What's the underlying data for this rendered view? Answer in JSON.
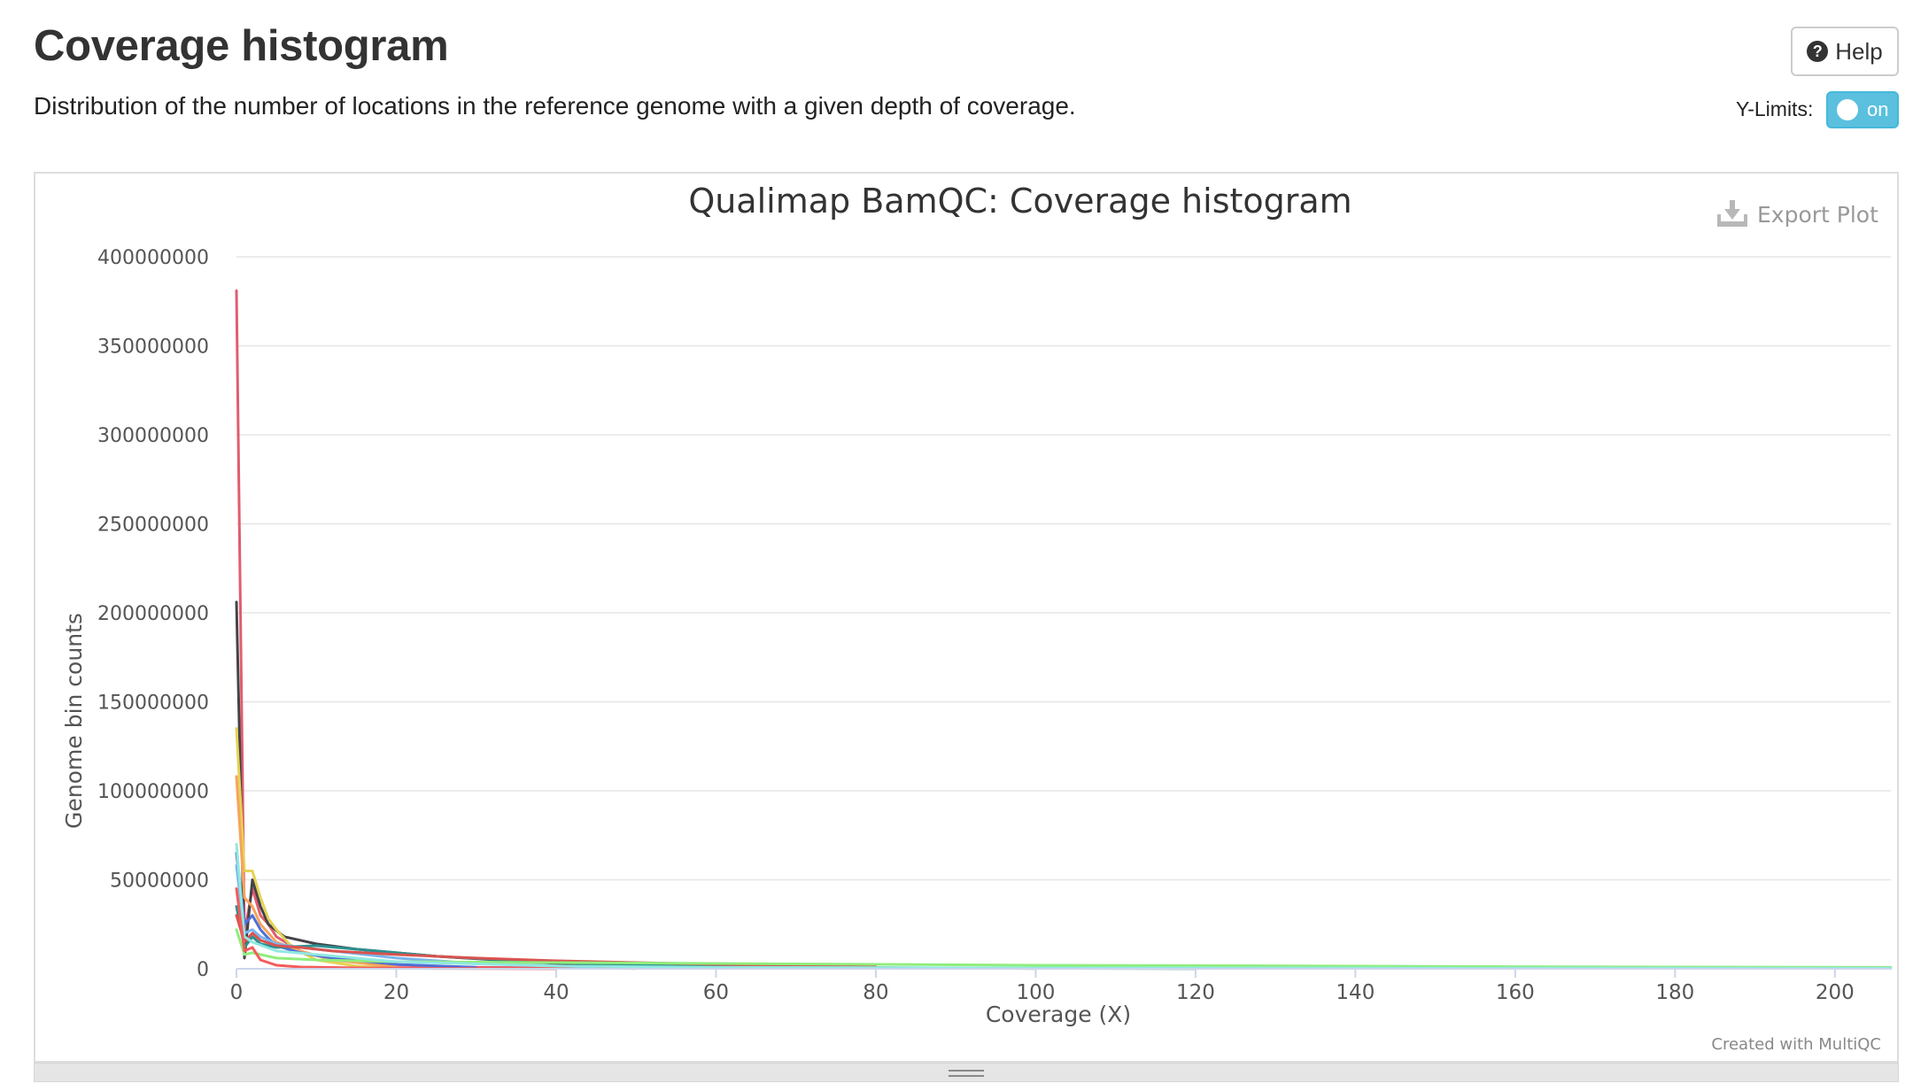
{
  "header": {
    "title": "Coverage histogram",
    "description": "Distribution of the number of locations in the reference genome with a given depth of coverage.",
    "help_label": "Help",
    "ylimits_label": "Y-Limits:",
    "ylimits_state": "on"
  },
  "plot": {
    "export_label": "Export Plot",
    "credit": "Created with MultiQC"
  },
  "colors": {
    "accent": "#5bc0de",
    "grid": "#e6e6e6"
  },
  "chart_data": {
    "type": "line",
    "title": "Qualimap BamQC: Coverage histogram",
    "xlabel": "Coverage (X)",
    "ylabel": "Genome bin counts",
    "xlim": [
      0,
      207
    ],
    "ylim": [
      0,
      400000000
    ],
    "x_ticks": [
      0,
      20,
      40,
      60,
      80,
      100,
      120,
      140,
      160,
      180,
      200
    ],
    "y_ticks": [
      0,
      50000000,
      100000000,
      150000000,
      200000000,
      250000000,
      300000000,
      350000000,
      400000000
    ],
    "grid": true,
    "legend": "none",
    "series": [
      {
        "color": "#e05d6f",
        "x": [
          0,
          1,
          2,
          3,
          4,
          5,
          8,
          12,
          20,
          30,
          50
        ],
        "y": [
          381000000,
          20000000,
          45000000,
          30000000,
          25000000,
          18000000,
          10000000,
          5000000,
          2000000,
          800000,
          200000
        ]
      },
      {
        "color": "#434348",
        "x": [
          0,
          1,
          2,
          3,
          4,
          6,
          10,
          15,
          25,
          40,
          60,
          100
        ],
        "y": [
          206000000,
          6000000,
          50000000,
          35000000,
          25000000,
          18000000,
          14000000,
          11000000,
          7000000,
          3000000,
          1000000,
          200000
        ]
      },
      {
        "color": "#e4d354",
        "x": [
          0,
          1,
          2,
          3,
          4,
          5,
          7,
          10,
          15,
          20
        ],
        "y": [
          135000000,
          55000000,
          55000000,
          40000000,
          28000000,
          22000000,
          12000000,
          5000000,
          1500000,
          300000
        ]
      },
      {
        "color": "#f7a35c",
        "x": [
          0,
          1,
          2,
          3,
          4,
          5,
          8,
          12,
          20
        ],
        "y": [
          108000000,
          40000000,
          35000000,
          25000000,
          20000000,
          15000000,
          10000000,
          5000000,
          1000000
        ]
      },
      {
        "color": "#4f6fd8",
        "x": [
          0,
          1,
          2,
          3,
          4,
          5,
          8,
          12,
          20,
          30
        ],
        "y": [
          65000000,
          25000000,
          30000000,
          22000000,
          17000000,
          13000000,
          9000000,
          6000000,
          2500000,
          800000
        ]
      },
      {
        "color": "#7cb5ec",
        "x": [
          0,
          1,
          2,
          3,
          5,
          8,
          12,
          20,
          30,
          45
        ],
        "y": [
          58000000,
          20000000,
          22000000,
          18000000,
          14000000,
          12000000,
          10000000,
          6000000,
          3000000,
          1000000
        ]
      },
      {
        "color": "#2b908f",
        "x": [
          0,
          1,
          2,
          3,
          5,
          10,
          15,
          25,
          40,
          55,
          80,
          120
        ],
        "y": [
          35000000,
          12000000,
          18000000,
          14000000,
          12000000,
          13000000,
          11000000,
          7000000,
          3500000,
          1500000,
          500000,
          100000
        ]
      },
      {
        "color": "#d9534f",
        "x": [
          0,
          1,
          2,
          3,
          5,
          8,
          12,
          20,
          30,
          40,
          60,
          80
        ],
        "y": [
          30000000,
          15000000,
          20000000,
          16000000,
          13000000,
          12000000,
          10000000,
          8000000,
          6000000,
          4500000,
          2500000,
          1000000
        ]
      },
      {
        "color": "#90ed7d",
        "x": [
          0,
          1,
          2,
          5,
          10,
          20,
          40,
          60,
          80,
          100,
          120,
          140,
          160,
          180,
          207
        ],
        "y": [
          22000000,
          8000000,
          9000000,
          6000000,
          5000000,
          4000000,
          3500000,
          3000000,
          2500000,
          2000000,
          1800000,
          1500000,
          1200000,
          1000000,
          800000
        ]
      },
      {
        "color": "#91e8e1",
        "x": [
          0,
          1,
          2,
          5,
          10,
          20,
          40,
          60,
          100,
          150,
          207
        ],
        "y": [
          70000000,
          18000000,
          15000000,
          10000000,
          8000000,
          4000000,
          1500000,
          800000,
          500000,
          400000,
          300000
        ]
      },
      {
        "color": "#f45b5b",
        "x": [
          0,
          1,
          2,
          3,
          5,
          8,
          15,
          25,
          40
        ],
        "y": [
          45000000,
          10000000,
          12000000,
          5000000,
          2000000,
          1000000,
          500000,
          200000,
          50000
        ]
      }
    ]
  }
}
